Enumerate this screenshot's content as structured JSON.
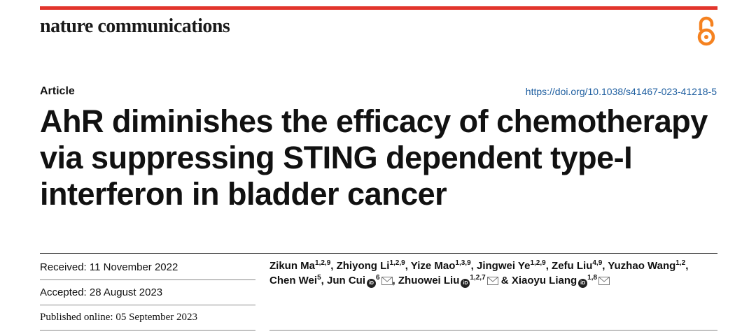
{
  "journal": "nature communications",
  "article_type": "Article",
  "doi": "https://doi.org/10.1038/s41467-023-41218-5",
  "title": "AhR diminishes the efficacy of chemotherapy via suppressing STING dependent type-I interferon in bladder cancer",
  "received": "Received: 11 November 2022",
  "accepted": "Accepted: 28 August 2023",
  "published": "Published online: 05 September 2023",
  "authors": [
    {
      "name": "Zikun Ma",
      "aff": "1,2,9",
      "sep": ", "
    },
    {
      "name": "Zhiyong Li",
      "aff": "1,2,9",
      "sep": ", "
    },
    {
      "name": "Yize Mao",
      "aff": "1,3,9",
      "sep": ", "
    },
    {
      "name": "Jingwei Ye",
      "aff": "1,2,9",
      "sep": ", "
    },
    {
      "name": "Zefu Liu",
      "aff": "4,9",
      "sep": ", "
    },
    {
      "name": "Yuzhao Wang",
      "aff": "1,2",
      "sep": ", "
    },
    {
      "name": "Chen Wei",
      "aff": "5",
      "sep": ", "
    },
    {
      "name": "Jun Cui",
      "aff": "6",
      "sep": ", "
    },
    {
      "name": "Zhuowei Liu",
      "aff": "1,2,7",
      "sep": " & "
    },
    {
      "name": "Xiaoyu Liang",
      "aff": "1,8",
      "sep": ""
    }
  ],
  "icons": {
    "open_access": "open-access-icon",
    "orcid": "orcid-icon",
    "mail": "mail-icon"
  },
  "colors": {
    "accent_bar": "#e2352c",
    "open_access": "#f58220",
    "doi_link": "#1f5fa0"
  }
}
